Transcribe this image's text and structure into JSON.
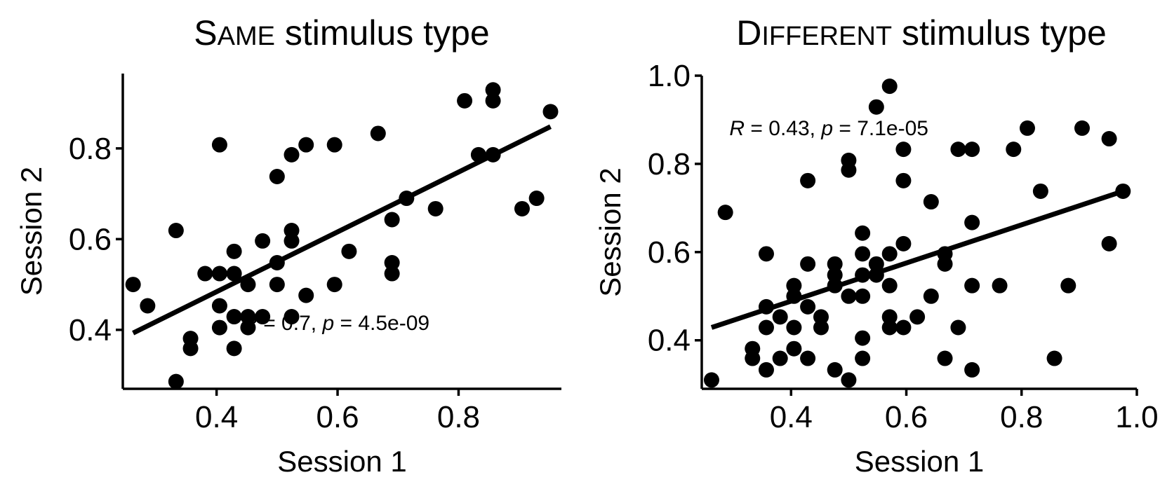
{
  "chart_data": [
    {
      "type": "scatter",
      "title_prefix": "S",
      "title_smallcaps": "AME",
      "title_rest": " stimulus type",
      "xlabel": "Session 1",
      "ylabel": "Session 2",
      "xlim": [
        0.245,
        0.97
      ],
      "ylim": [
        0.27,
        0.965
      ],
      "xticks": [
        0.4,
        0.6,
        0.8
      ],
      "yticks": [
        0.4,
        0.6,
        0.8
      ],
      "xtick_labels": [
        "0.4",
        "0.6",
        "0.8"
      ],
      "ytick_labels": [
        "0.4",
        "0.6",
        "0.8"
      ],
      "annotation": {
        "r_symbol": "R",
        "r_text": " = 0.7, ",
        "p_symbol": "p",
        "p_text": " = 4.5e-09",
        "x": 0.752,
        "y": 0.4
      },
      "fit": {
        "x": [
          0.262,
          0.952
        ],
        "y": [
          0.393,
          0.848
        ]
      },
      "points": [
        [
          0.262,
          0.5
        ],
        [
          0.286,
          0.453
        ],
        [
          0.333,
          0.619
        ],
        [
          0.333,
          0.286
        ],
        [
          0.357,
          0.381
        ],
        [
          0.357,
          0.359
        ],
        [
          0.381,
          0.524
        ],
        [
          0.405,
          0.808
        ],
        [
          0.405,
          0.524
        ],
        [
          0.405,
          0.453
        ],
        [
          0.405,
          0.405
        ],
        [
          0.429,
          0.573
        ],
        [
          0.429,
          0.524
        ],
        [
          0.429,
          0.429
        ],
        [
          0.429,
          0.359
        ],
        [
          0.452,
          0.5
        ],
        [
          0.452,
          0.429
        ],
        [
          0.452,
          0.405
        ],
        [
          0.476,
          0.596
        ],
        [
          0.476,
          0.429
        ],
        [
          0.5,
          0.738
        ],
        [
          0.5,
          0.548
        ],
        [
          0.5,
          0.5
        ],
        [
          0.524,
          0.786
        ],
        [
          0.524,
          0.619
        ],
        [
          0.524,
          0.596
        ],
        [
          0.524,
          0.429
        ],
        [
          0.548,
          0.808
        ],
        [
          0.548,
          0.476
        ],
        [
          0.595,
          0.808
        ],
        [
          0.595,
          0.5
        ],
        [
          0.619,
          0.573
        ],
        [
          0.667,
          0.833
        ],
        [
          0.69,
          0.643
        ],
        [
          0.69,
          0.548
        ],
        [
          0.69,
          0.524
        ],
        [
          0.714,
          0.69
        ],
        [
          0.762,
          0.667
        ],
        [
          0.81,
          0.905
        ],
        [
          0.833,
          0.786
        ],
        [
          0.857,
          0.929
        ],
        [
          0.857,
          0.905
        ],
        [
          0.857,
          0.786
        ],
        [
          0.905,
          0.667
        ],
        [
          0.929,
          0.69
        ],
        [
          0.952,
          0.881
        ]
      ]
    },
    {
      "type": "scatter",
      "title_prefix": "D",
      "title_smallcaps": "IFFERENT",
      "title_rest": " stimulus type",
      "xlabel": "Session 1",
      "ylabel": "Session 2",
      "xlim": [
        0.245,
        1.0
      ],
      "ylim": [
        0.29,
        1.0
      ],
      "xticks": [
        0.4,
        0.6,
        0.8,
        1.0
      ],
      "yticks": [
        0.4,
        0.6,
        0.8,
        1.0
      ],
      "xtick_labels": [
        "0.4",
        "0.6",
        "0.8",
        "1.0"
      ],
      "ytick_labels": [
        "0.4",
        "0.6",
        "0.8",
        "1.0"
      ],
      "annotation": {
        "r_symbol": "R",
        "r_text": " = 0.43, ",
        "p_symbol": "p",
        "p_text": " = 7.1e-05",
        "x": 0.293,
        "y": 0.865
      },
      "fit": {
        "x": [
          0.262,
          0.976
        ],
        "y": [
          0.429,
          0.738
        ]
      },
      "points": [
        [
          0.262,
          0.31
        ],
        [
          0.286,
          0.69
        ],
        [
          0.333,
          0.381
        ],
        [
          0.333,
          0.359
        ],
        [
          0.357,
          0.596
        ],
        [
          0.357,
          0.476
        ],
        [
          0.357,
          0.429
        ],
        [
          0.357,
          0.333
        ],
        [
          0.381,
          0.453
        ],
        [
          0.381,
          0.359
        ],
        [
          0.405,
          0.524
        ],
        [
          0.405,
          0.5
        ],
        [
          0.405,
          0.429
        ],
        [
          0.405,
          0.381
        ],
        [
          0.429,
          0.762
        ],
        [
          0.429,
          0.573
        ],
        [
          0.429,
          0.476
        ],
        [
          0.429,
          0.359
        ],
        [
          0.452,
          0.453
        ],
        [
          0.452,
          0.429
        ],
        [
          0.476,
          0.573
        ],
        [
          0.476,
          0.548
        ],
        [
          0.476,
          0.524
        ],
        [
          0.476,
          0.333
        ],
        [
          0.5,
          0.808
        ],
        [
          0.5,
          0.786
        ],
        [
          0.5,
          0.5
        ],
        [
          0.5,
          0.31
        ],
        [
          0.524,
          0.643
        ],
        [
          0.524,
          0.596
        ],
        [
          0.524,
          0.548
        ],
        [
          0.524,
          0.5
        ],
        [
          0.524,
          0.405
        ],
        [
          0.524,
          0.359
        ],
        [
          0.548,
          0.929
        ],
        [
          0.548,
          0.573
        ],
        [
          0.548,
          0.548
        ],
        [
          0.571,
          0.976
        ],
        [
          0.571,
          0.596
        ],
        [
          0.571,
          0.524
        ],
        [
          0.571,
          0.453
        ],
        [
          0.571,
          0.429
        ],
        [
          0.595,
          0.833
        ],
        [
          0.595,
          0.762
        ],
        [
          0.595,
          0.619
        ],
        [
          0.595,
          0.429
        ],
        [
          0.619,
          0.453
        ],
        [
          0.643,
          0.714
        ],
        [
          0.643,
          0.5
        ],
        [
          0.667,
          0.596
        ],
        [
          0.667,
          0.573
        ],
        [
          0.667,
          0.359
        ],
        [
          0.69,
          0.833
        ],
        [
          0.69,
          0.429
        ],
        [
          0.714,
          0.833
        ],
        [
          0.714,
          0.667
        ],
        [
          0.714,
          0.524
        ],
        [
          0.714,
          0.333
        ],
        [
          0.762,
          0.524
        ],
        [
          0.786,
          0.833
        ],
        [
          0.81,
          0.881
        ],
        [
          0.833,
          0.738
        ],
        [
          0.857,
          0.359
        ],
        [
          0.881,
          0.524
        ],
        [
          0.905,
          0.881
        ],
        [
          0.952,
          0.857
        ],
        [
          0.952,
          0.619
        ],
        [
          0.976,
          0.738
        ]
      ]
    }
  ]
}
